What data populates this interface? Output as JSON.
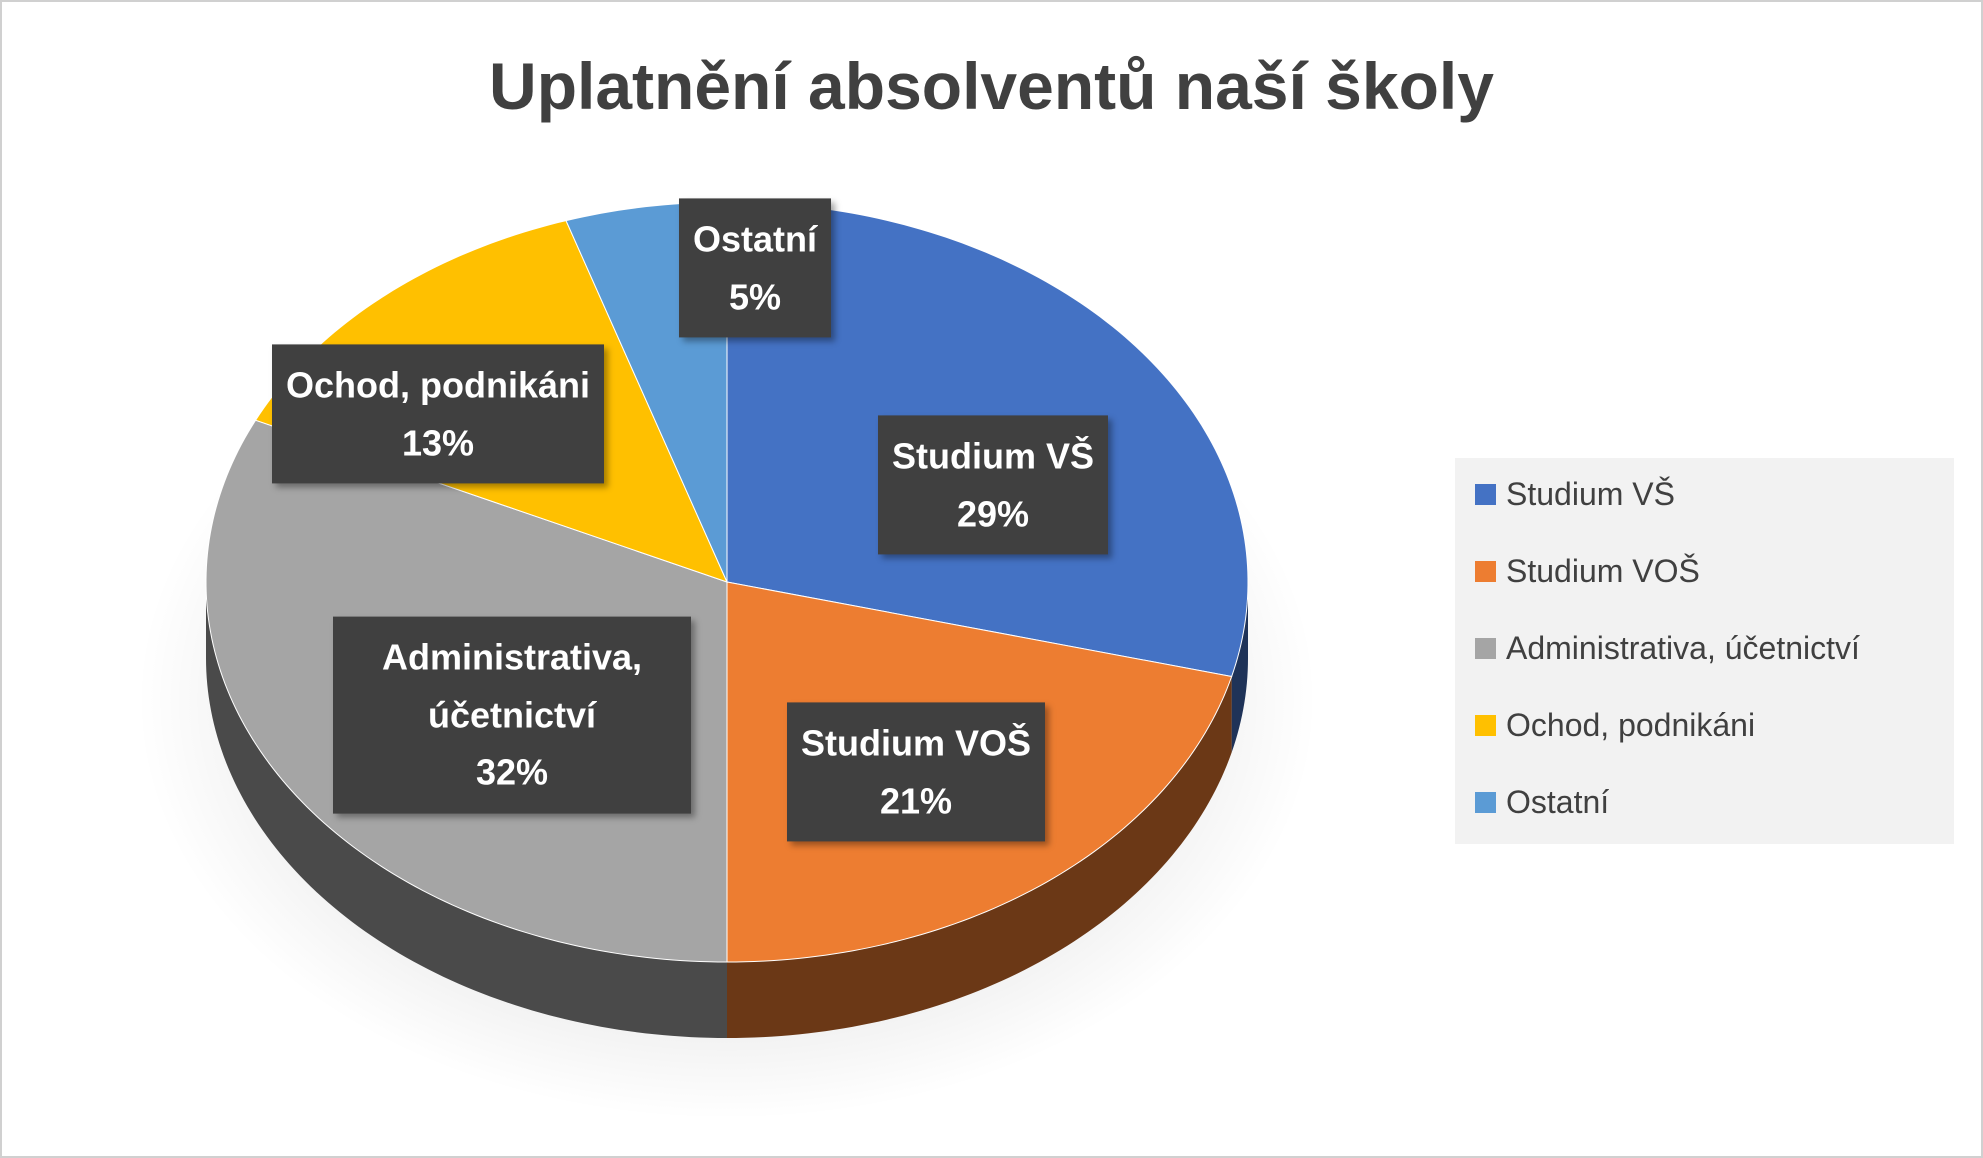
{
  "chart_data": {
    "type": "pie",
    "title": "Uplatnění absolventů naší školy",
    "categories": [
      "Studium VŠ",
      "Studium VOŠ",
      "Administrativa, účetnictví",
      "Ochod, podnikáni",
      "Ostatní"
    ],
    "values": [
      29,
      21,
      32,
      13,
      5
    ],
    "value_labels": [
      "29%",
      "21%",
      "32%",
      "13%",
      "5%"
    ],
    "colors": [
      "#4472c4",
      "#ed7d31",
      "#a5a5a5",
      "#ffc000",
      "#5b9bd5"
    ],
    "legend": "right"
  }
}
